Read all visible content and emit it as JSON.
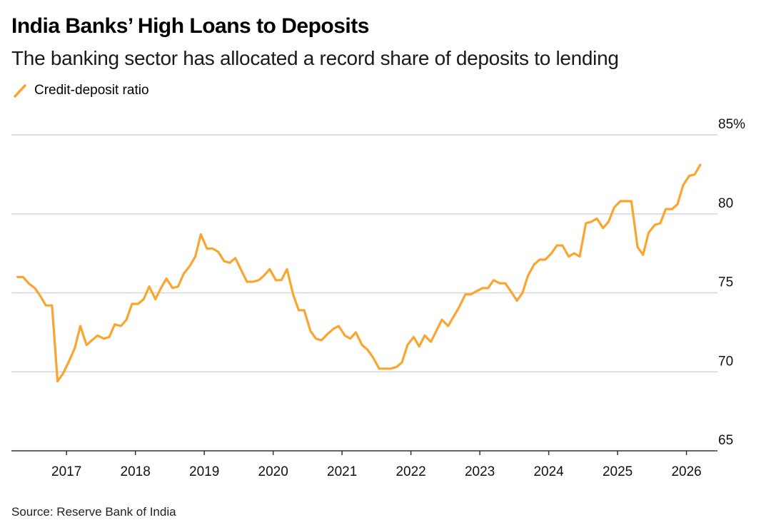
{
  "title": "India Banks’ High Loans to Deposits",
  "subtitle": "The banking sector has allocated a record share of deposits to lending",
  "source": "Source: Reserve Bank of India",
  "colors": {
    "line": "#f9a530",
    "grid": "#d6d6d6",
    "axis": "#333333"
  },
  "chart_data": {
    "type": "line",
    "title": "India Banks’ High Loans to Deposits",
    "xlabel": "",
    "ylabel": "",
    "xlim": [
      2016.2,
      2026.45
    ],
    "ylim": [
      65,
      85
    ],
    "y_ticks": [
      {
        "value": 85,
        "label": "85%"
      },
      {
        "value": 80,
        "label": "80"
      },
      {
        "value": 75,
        "label": "75"
      },
      {
        "value": 70,
        "label": "70"
      },
      {
        "value": 65,
        "label": "65"
      }
    ],
    "x_ticks": [
      {
        "value": 2017,
        "label": "2017"
      },
      {
        "value": 2018,
        "label": "2018"
      },
      {
        "value": 2019,
        "label": "2019"
      },
      {
        "value": 2020,
        "label": "2020"
      },
      {
        "value": 2021,
        "label": "2021"
      },
      {
        "value": 2022,
        "label": "2022"
      },
      {
        "value": 2023,
        "label": "2023"
      },
      {
        "value": 2024,
        "label": "2024"
      },
      {
        "value": 2025,
        "label": "2025"
      },
      {
        "value": 2026,
        "label": "2026"
      }
    ],
    "legend": "top-left",
    "series": [
      {
        "name": "Credit-deposit ratio",
        "x": [
          2016.29,
          2016.37,
          2016.45,
          2016.54,
          2016.62,
          2016.7,
          2016.79,
          2016.87,
          2016.95,
          2017.04,
          2017.12,
          2017.2,
          2017.29,
          2017.37,
          2017.45,
          2017.54,
          2017.62,
          2017.7,
          2017.79,
          2017.87,
          2017.95,
          2018.04,
          2018.12,
          2018.2,
          2018.29,
          2018.37,
          2018.45,
          2018.54,
          2018.62,
          2018.7,
          2018.79,
          2018.87,
          2018.95,
          2019.04,
          2019.12,
          2019.2,
          2019.29,
          2019.37,
          2019.45,
          2019.54,
          2019.62,
          2019.7,
          2019.79,
          2019.87,
          2019.95,
          2020.04,
          2020.12,
          2020.2,
          2020.29,
          2020.37,
          2020.45,
          2020.54,
          2020.62,
          2020.7,
          2020.79,
          2020.87,
          2020.95,
          2021.04,
          2021.12,
          2021.2,
          2021.29,
          2021.37,
          2021.45,
          2021.54,
          2021.62,
          2021.7,
          2021.79,
          2021.87,
          2021.95,
          2022.04,
          2022.12,
          2022.2,
          2022.29,
          2022.37,
          2022.45,
          2022.54,
          2022.62,
          2022.7,
          2022.79,
          2022.87,
          2022.95,
          2023.04,
          2023.12,
          2023.2,
          2023.29,
          2023.37,
          2023.45,
          2023.54,
          2023.62,
          2023.7,
          2023.79,
          2023.87,
          2023.95,
          2024.04,
          2024.12,
          2024.2,
          2024.29,
          2024.37,
          2024.45,
          2024.54,
          2024.62,
          2024.7,
          2024.79,
          2024.87,
          2024.95,
          2025.04,
          2025.12,
          2025.2,
          2025.29,
          2025.37,
          2025.45,
          2025.54,
          2025.62,
          2025.7,
          2025.79,
          2025.87,
          2025.95,
          2026.04,
          2026.12,
          2026.2
        ],
        "values": [
          76.0,
          76.0,
          75.6,
          75.3,
          74.8,
          74.2,
          74.2,
          69.4,
          69.9,
          70.7,
          71.5,
          72.9,
          71.7,
          72.0,
          72.3,
          72.1,
          72.2,
          73.0,
          72.9,
          73.3,
          74.3,
          74.3,
          74.6,
          75.4,
          74.6,
          75.3,
          75.9,
          75.3,
          75.4,
          76.2,
          76.7,
          77.3,
          78.7,
          77.8,
          77.8,
          77.6,
          77.0,
          76.9,
          77.2,
          76.4,
          75.7,
          75.7,
          75.8,
          76.1,
          76.5,
          75.8,
          75.8,
          76.5,
          74.9,
          73.9,
          73.9,
          72.6,
          72.1,
          72.0,
          72.4,
          72.7,
          72.9,
          72.3,
          72.1,
          72.5,
          71.7,
          71.4,
          70.9,
          70.2,
          70.2,
          70.2,
          70.3,
          70.6,
          71.7,
          72.2,
          71.6,
          72.3,
          71.9,
          72.6,
          73.3,
          72.9,
          73.5,
          74.1,
          74.9,
          74.9,
          75.1,
          75.3,
          75.3,
          75.8,
          75.6,
          75.6,
          75.1,
          74.5,
          75.0,
          76.1,
          76.8,
          77.1,
          77.1,
          77.5,
          78.0,
          78.0,
          77.3,
          77.5,
          77.3,
          79.4,
          79.5,
          79.7,
          79.1,
          79.5,
          80.4,
          80.8,
          80.8,
          80.8,
          77.9,
          77.4,
          78.8,
          79.3,
          79.4,
          80.3,
          80.3,
          80.6,
          81.8,
          82.4,
          82.5,
          83.1
        ]
      }
    ]
  }
}
